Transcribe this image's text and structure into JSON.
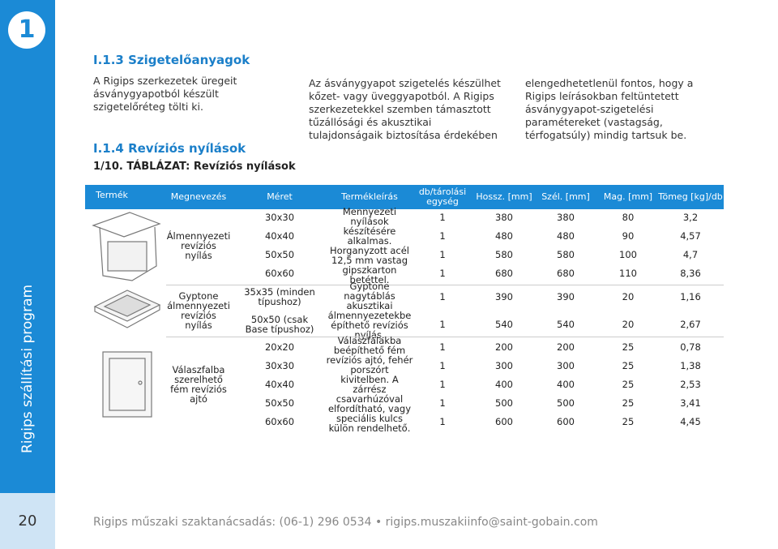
{
  "header": {
    "chapter": "1",
    "side_title": "Rigips szállítási program",
    "page_number": "20"
  },
  "section": {
    "title": "I.1.3 Szigetelőanyagok",
    "columns": [
      "A Rigips szerkezetek üregeit ásványgyapotból készült szigetelőréteg tölti ki.",
      "Az ásványgyapot szigetelés készülhet kőzet- vagy üveggyapotból. A Rigips szerkezetekkel szemben támasztott tűzállósági és akusztikai tulajdonságaik biztosítása érdekében",
      "elengedhetetlenül fontos, hogy a Rigips leírásokban feltüntetett ásványgyapot-szigetelési paramétereket (vastagság, térfogatsúly) mindig tartsuk be."
    ]
  },
  "subsection": {
    "title": "I.1.4 Revíziós nyílások",
    "table_caption": "1/10. TÁBLÁZAT: Revíziós nyílások"
  },
  "table": {
    "columns": [
      "Termék",
      "Megnevezés",
      "Méret",
      "Termékleírás",
      "db/tárolási egység",
      "Hossz. [mm]",
      "Szél. [mm]",
      "Mag. [mm]",
      "Tömeg [kg]/db"
    ],
    "groups": [
      {
        "name": "Álmennyezeti revíziós nyílás",
        "description": "Mennyezeti nyílások készítésére alkalmas. Horganyzott acél 12,5 mm vastag gipszkarton betéttel.",
        "rows": [
          [
            "30x30",
            "1",
            "380",
            "380",
            "80",
            "3,2"
          ],
          [
            "40x40",
            "1",
            "480",
            "480",
            "90",
            "4,57"
          ],
          [
            "50x50",
            "1",
            "580",
            "580",
            "100",
            "4,7"
          ],
          [
            "60x60",
            "1",
            "680",
            "680",
            "110",
            "8,36"
          ]
        ]
      },
      {
        "name": "Gyptone álmennyezeti revíziós nyílás",
        "description": "Gyptone nagytáblás akusztikai álmennyezetekbe építhető revíziós nyílás.",
        "rows": [
          [
            "35x35 (minden típushoz)",
            "1",
            "390",
            "390",
            "20",
            "1,16"
          ],
          [
            "50x50 (csak Base típushoz)",
            "1",
            "540",
            "540",
            "20",
            "2,67"
          ]
        ]
      },
      {
        "name": "Válaszfalba szerelhető fém revíziós ajtó",
        "description": "Válaszfalakba beépíthető fém revíziós ajtó, fehér porszórt kivitelben. A zárrész csavarhúzóval elfordítható, vagy speciális kulcs külön rendelhető.",
        "rows": [
          [
            "20x20",
            "1",
            "200",
            "200",
            "25",
            "0,78"
          ],
          [
            "30x30",
            "1",
            "300",
            "300",
            "25",
            "1,38"
          ],
          [
            "40x40",
            "1",
            "400",
            "400",
            "25",
            "2,53"
          ],
          [
            "50x50",
            "1",
            "500",
            "500",
            "25",
            "3,41"
          ],
          [
            "60x60",
            "1",
            "600",
            "600",
            "25",
            "4,45"
          ]
        ]
      }
    ]
  },
  "footer": "Rigips műszaki szaktanácsadás: (06-1) 296 0534 • rigips.muszakiinfo@saint-gobain.com"
}
